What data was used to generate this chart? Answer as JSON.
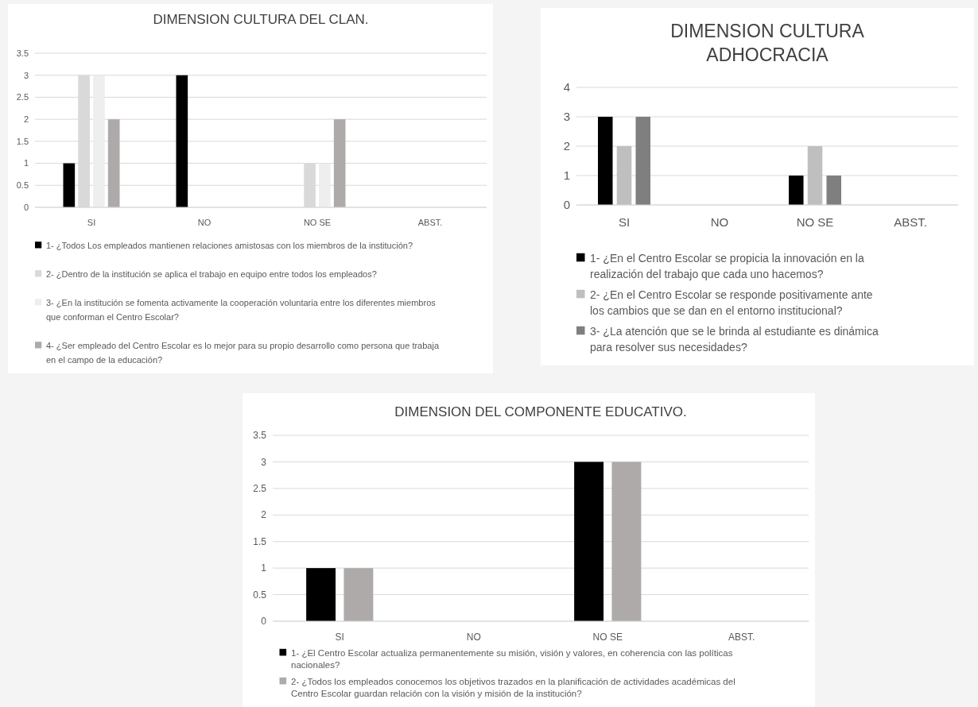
{
  "chart_data": [
    {
      "type": "bar",
      "title": "DIMENSION CULTURA DEL CLAN.",
      "categories": [
        "SI",
        "NO",
        "NO SE",
        "ABST."
      ],
      "ylim": [
        0,
        3.5
      ],
      "yticks": [
        0,
        0.5,
        1,
        1.5,
        2,
        2.5,
        3,
        3.5
      ],
      "grid": "y",
      "legend": "bottom",
      "series": [
        {
          "name": "1- ¿Todos Los empleados mantienen relaciones amistosas con los miembros de la institución?",
          "color": "#000000",
          "values": [
            1,
            3,
            0,
            0
          ]
        },
        {
          "name": "2- ¿Dentro de la institución se aplica el trabajo en equipo entre todos los empleados?",
          "color": "#d9d9d9",
          "values": [
            3,
            0,
            1,
            0
          ]
        },
        {
          "name": "3- ¿En la institución se fomenta activamente la cooperación voluntaria entre los diferentes miembros que conforman el Centro Escolar?",
          "color": "#eeeeee",
          "values": [
            3,
            0,
            1,
            0
          ]
        },
        {
          "name": "4- ¿Ser empleado del Centro Escolar es lo mejor para su propio desarrollo como persona que trabaja en el campo de la educación?",
          "color": "#aeaaaa",
          "values": [
            2,
            0,
            2,
            0
          ]
        }
      ]
    },
    {
      "type": "bar",
      "title": "DIMENSION CULTURA ADHOCRACIA",
      "categories": [
        "SI",
        "NO",
        "NO SE",
        "ABST."
      ],
      "ylim": [
        0,
        4
      ],
      "yticks": [
        0,
        1,
        2,
        3,
        4
      ],
      "grid": "y",
      "legend": "bottom",
      "series": [
        {
          "name": "1- ¿En el Centro Escolar se propicia la innovación en la realización del trabajo que cada uno hacemos?",
          "color": "#000000",
          "values": [
            3,
            0,
            1,
            0
          ]
        },
        {
          "name": "2- ¿En el Centro Escolar se responde positivamente ante los cambios que se dan en el entorno institucional?",
          "color": "#bfbfbf",
          "values": [
            2,
            0,
            2,
            0
          ]
        },
        {
          "name": "3- ¿La atención que se le brinda al estudiante es dinámica para resolver sus necesidades?",
          "color": "#7f7f7f",
          "values": [
            3,
            0,
            1,
            0
          ]
        }
      ]
    },
    {
      "type": "bar",
      "title": "DIMENSION DEL COMPONENTE EDUCATIVO.",
      "categories": [
        "SI",
        "NO",
        "NO SE",
        "ABST."
      ],
      "ylim": [
        0,
        3.5
      ],
      "yticks": [
        0,
        0.5,
        1,
        1.5,
        2,
        2.5,
        3,
        3.5
      ],
      "grid": "y",
      "legend": "bottom",
      "series": [
        {
          "name": "1- ¿El Centro Escolar actualiza permanentemente su misión, visión y valores, en coherencia con las políticas nacionales?",
          "color": "#000000",
          "values": [
            1,
            0,
            3,
            0
          ]
        },
        {
          "name": "2- ¿Todos los empleados conocemos los objetivos trazados en la planificación de actividades académicas del Centro Escolar guardan relación con la visión y misión de la institución?",
          "color": "#aeaaaa",
          "values": [
            1,
            0,
            3,
            0
          ]
        }
      ]
    }
  ]
}
